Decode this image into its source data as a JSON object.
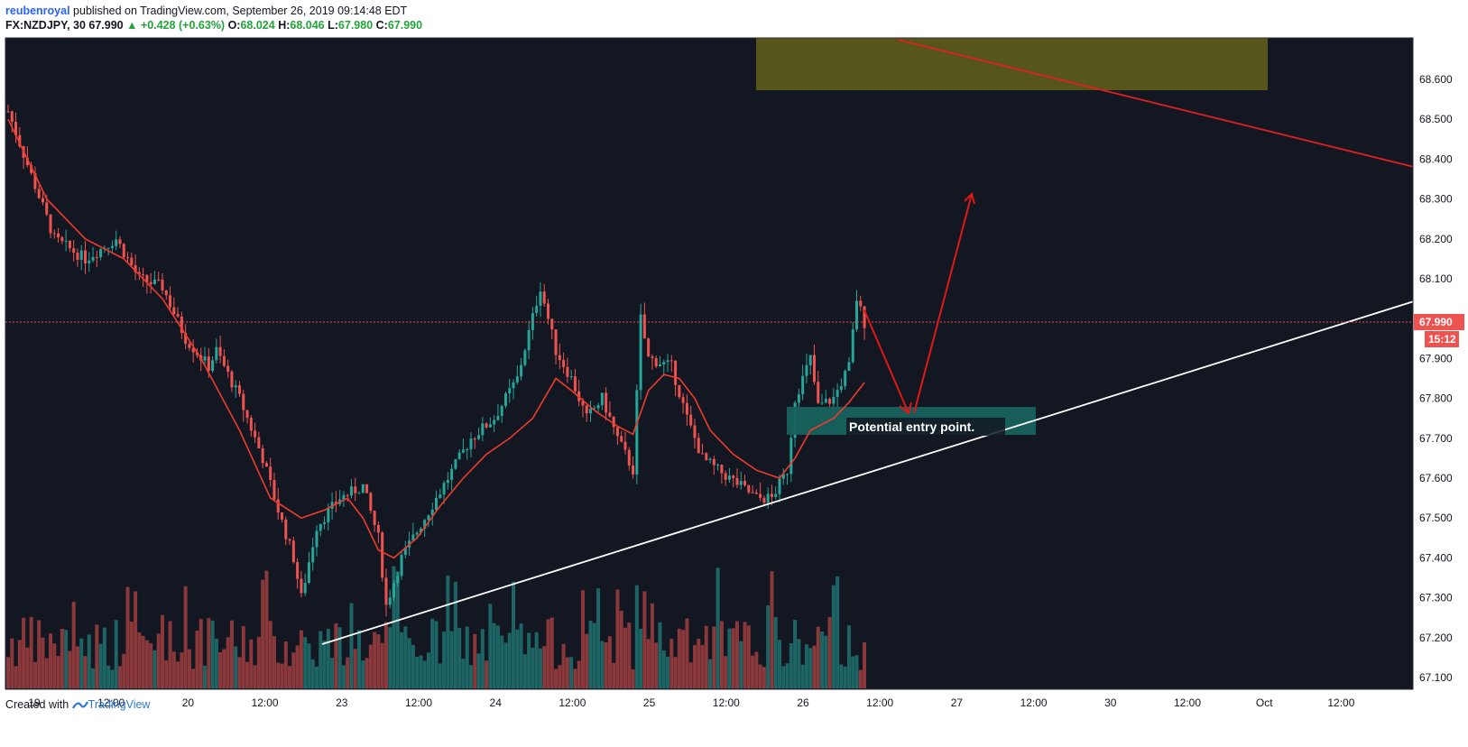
{
  "header": {
    "author": "reubenroyal",
    "published_text": "published on TradingView.com, September 26, 2019 09:14:48 EDT"
  },
  "ohlc": {
    "symbol": "FX:NZDJPY, 30",
    "last": "67.990",
    "change": "▲ +0.428 (+0.63%)",
    "o_label": "O:",
    "o": "68.024",
    "h_label": "H:",
    "h": "68.046",
    "l_label": "L:",
    "l": "67.980",
    "c_label": "C:",
    "c": "67.990"
  },
  "footer": {
    "created_with": "Created with",
    "brand": "TradingView"
  },
  "colors": {
    "background": "#131722",
    "up": "#26a69a",
    "down": "#ef5350",
    "ma": "#ef3b2c",
    "trendline_support": "#ffffff",
    "trendline_resistance": "#e02020",
    "supply_zone": "#5a5a1a",
    "entry_zone": "#17625f",
    "price_badge": "#ef5350"
  },
  "chart_data": {
    "type": "candlestick",
    "y_ticks": [
      "68.600",
      "68.500",
      "68.400",
      "68.300",
      "68.200",
      "68.100",
      "67.990",
      "67.900",
      "67.800",
      "67.700",
      "67.600",
      "67.500",
      "67.400",
      "67.300",
      "67.200",
      "67.100"
    ],
    "ylim": [
      67.08,
      68.66
    ],
    "last_price": "67.990",
    "countdown": "15:12",
    "x_ticks": [
      "19",
      "12:00",
      "20",
      "12:00",
      "23",
      "12:00",
      "24",
      "12:00",
      "25",
      "12:00",
      "26",
      "12:00",
      "27",
      "12:00",
      "30",
      "12:00",
      "Oct",
      "12:00"
    ],
    "price_path": [
      [
        0,
        68.52
      ],
      [
        6,
        68.2
      ],
      [
        10,
        68.15
      ],
      [
        14,
        68.2
      ],
      [
        17,
        68.1
      ],
      [
        20,
        68.08
      ],
      [
        23,
        67.95
      ],
      [
        26,
        67.88
      ],
      [
        27,
        67.92
      ],
      [
        30,
        67.8
      ],
      [
        33,
        67.65
      ],
      [
        35,
        67.52
      ],
      [
        37,
        67.4
      ],
      [
        38,
        67.3
      ],
      [
        40,
        67.48
      ],
      [
        43,
        67.55
      ],
      [
        46,
        67.58
      ],
      [
        48,
        67.45
      ],
      [
        49,
        67.28
      ],
      [
        51,
        67.4
      ],
      [
        54,
        67.5
      ],
      [
        57,
        67.6
      ],
      [
        60,
        67.7
      ],
      [
        63,
        67.75
      ],
      [
        66,
        67.85
      ],
      [
        69,
        68.08
      ],
      [
        71,
        67.92
      ],
      [
        73,
        67.85
      ],
      [
        75,
        67.75
      ],
      [
        77,
        67.8
      ],
      [
        79,
        67.7
      ],
      [
        81,
        67.62
      ],
      [
        82,
        68.0
      ],
      [
        83,
        67.9
      ],
      [
        86,
        67.88
      ],
      [
        88,
        67.75
      ],
      [
        90,
        67.65
      ],
      [
        92,
        67.62
      ],
      [
        95,
        67.58
      ],
      [
        97,
        67.55
      ],
      [
        99,
        67.55
      ],
      [
        101,
        67.62
      ],
      [
        102,
        67.8
      ],
      [
        104,
        67.9
      ],
      [
        105,
        67.78
      ],
      [
        107,
        67.8
      ],
      [
        109,
        67.88
      ],
      [
        110,
        68.05
      ],
      [
        111,
        67.99
      ]
    ],
    "moving_average": [
      [
        0,
        68.5
      ],
      [
        5,
        68.3
      ],
      [
        10,
        68.2
      ],
      [
        15,
        68.15
      ],
      [
        20,
        68.05
      ],
      [
        25,
        67.9
      ],
      [
        30,
        67.72
      ],
      [
        34,
        67.55
      ],
      [
        38,
        67.5
      ],
      [
        41,
        67.52
      ],
      [
        44,
        67.55
      ],
      [
        46,
        67.5
      ],
      [
        48,
        67.42
      ],
      [
        50,
        67.4
      ],
      [
        53,
        67.45
      ],
      [
        56,
        67.53
      ],
      [
        59,
        67.6
      ],
      [
        62,
        67.66
      ],
      [
        65,
        67.7
      ],
      [
        68,
        67.75
      ],
      [
        71,
        67.85
      ],
      [
        73,
        67.82
      ],
      [
        76,
        67.77
      ],
      [
        79,
        67.73
      ],
      [
        81,
        67.71
      ],
      [
        83,
        67.82
      ],
      [
        85,
        67.86
      ],
      [
        87,
        67.85
      ],
      [
        89,
        67.8
      ],
      [
        91,
        67.72
      ],
      [
        94,
        67.66
      ],
      [
        97,
        67.62
      ],
      [
        100,
        67.6
      ],
      [
        102,
        67.65
      ],
      [
        104,
        67.72
      ],
      [
        107,
        67.75
      ],
      [
        109,
        67.79
      ],
      [
        111,
        67.84
      ]
    ],
    "annotations": {
      "entry_label": "Potential entry point."
    }
  }
}
